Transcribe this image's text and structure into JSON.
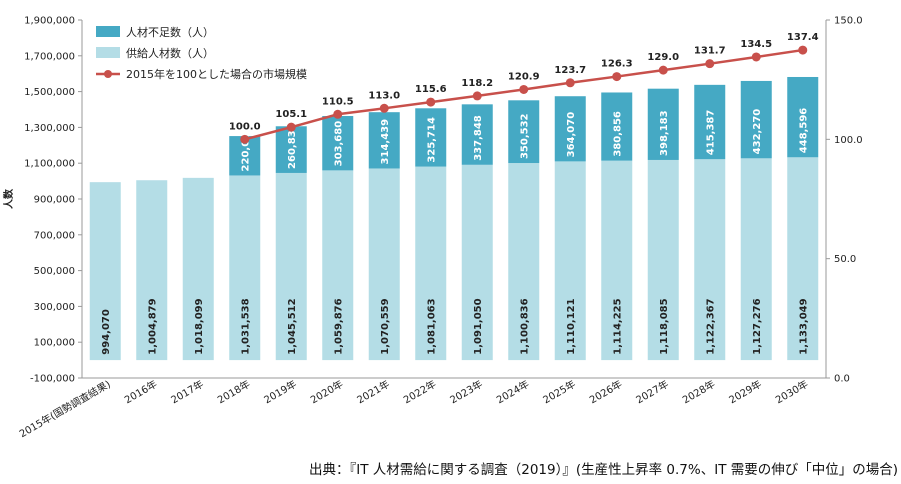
{
  "chart_data": {
    "type": "bar",
    "stacked": true,
    "categories": [
      "2015年(国勢調査結果)",
      "2016年",
      "2017年",
      "2018年",
      "2019年",
      "2020年",
      "2021年",
      "2022年",
      "2023年",
      "2024年",
      "2025年",
      "2026年",
      "2027年",
      "2028年",
      "2029年",
      "2030年"
    ],
    "series": [
      {
        "name": "供給人材数（人）",
        "color": "#b4dde6",
        "values": [
          994070,
          1004879,
          1018099,
          1031538,
          1045512,
          1059876,
          1070559,
          1081063,
          1091050,
          1100836,
          1110121,
          1114225,
          1118085,
          1122367,
          1127276,
          1133049
        ],
        "labels": [
          "994,070",
          "1,004,879",
          "1,018,099",
          "1,031,538",
          "1,045,512",
          "1,059,876",
          "1,070,559",
          "1,081,063",
          "1,091,050",
          "1,100,836",
          "1,110,121",
          "1,114,225",
          "1,118,085",
          "1,122,367",
          "1,127,276",
          "1,133,049"
        ]
      },
      {
        "name": "人材不足数（人）",
        "color": "#45a9c4",
        "values": [
          null,
          null,
          null,
          220000,
          260835,
          303680,
          314439,
          325714,
          337848,
          350532,
          364070,
          380856,
          398183,
          415387,
          432270,
          448596
        ],
        "labels": [
          "",
          "",
          "",
          "220,000",
          "260,835",
          "303,680",
          "314,439",
          "325,714",
          "337,848",
          "350,532",
          "364,070",
          "380,856",
          "398,183",
          "415,387",
          "432,270",
          "448,596"
        ]
      },
      {
        "name": "2015年を100とした場合の市場規模",
        "type": "line",
        "axis": "right",
        "color": "#c8504b",
        "values": [
          null,
          null,
          null,
          100.0,
          105.1,
          110.5,
          113.0,
          115.6,
          118.2,
          120.9,
          123.7,
          126.3,
          129.0,
          131.7,
          134.5,
          137.4
        ],
        "labels": [
          "",
          "",
          "",
          "100.0",
          "105.1",
          "110.5",
          "113.0",
          "115.6",
          "118.2",
          "120.9",
          "123.7",
          "126.3",
          "129.0",
          "131.7",
          "134.5",
          "137.4"
        ]
      }
    ],
    "ylabel": "人数",
    "ylim": [
      -100000,
      1900000
    ],
    "yticks": [
      -100000,
      100000,
      300000,
      500000,
      700000,
      900000,
      1100000,
      1300000,
      1500000,
      1700000,
      1900000
    ],
    "ytick_labels": [
      "-100,000",
      "100,000",
      "300,000",
      "500,000",
      "700,000",
      "900,000",
      "1,100,000",
      "1,300,000",
      "1,500,000",
      "1,700,000",
      "1,900,000"
    ],
    "y2lim": [
      0,
      150
    ],
    "y2ticks": [
      0,
      50,
      100,
      150
    ],
    "y2tick_labels": [
      "0.0",
      "50.0",
      "100.0",
      "150.0"
    ],
    "legend_position": "top-left",
    "grid": false
  },
  "source": "出典：『IT 人材需給に関する調査（2019）』(生産性上昇率 0.7%、IT 需要の伸び「中位」の場合)"
}
